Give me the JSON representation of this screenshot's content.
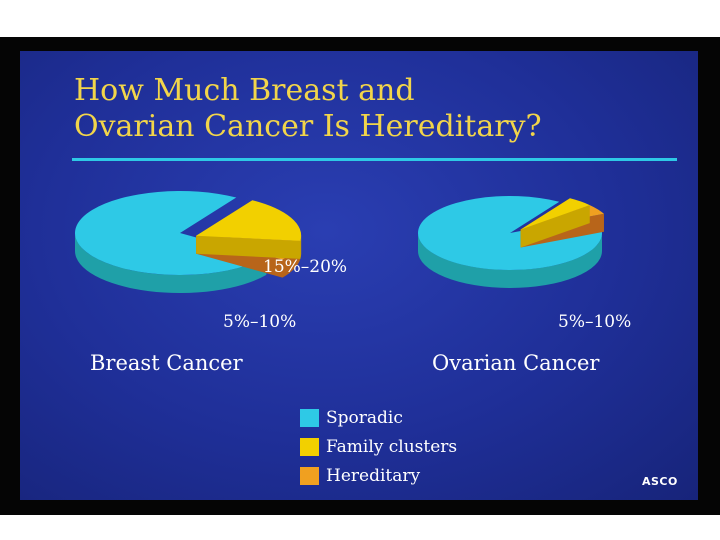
{
  "slide": {
    "title_line1": "How Much Breast and",
    "title_line2": "Ovarian Cancer Is Hereditary?",
    "source": "ASCO",
    "colors": {
      "background": "#1f2f98",
      "title": "#f2d54a",
      "rule": "#2ec9e6",
      "sporadic": "#2ec9e6",
      "family_clusters": "#f2d000",
      "hereditary": "#f0a020"
    }
  },
  "chart_data": [
    {
      "type": "pie",
      "title": "Breast Cancer",
      "categories": [
        "Sporadic",
        "Family clusters",
        "Hereditary"
      ],
      "values": [
        72.5,
        17.5,
        7.5
      ],
      "annotations": [
        "15%–20%",
        "5%–10%"
      ],
      "legend": "bottom-center",
      "style": "3d-exploded"
    },
    {
      "type": "pie",
      "title": "Ovarian Cancer",
      "categories": [
        "Sporadic",
        "Family clusters",
        "Hereditary"
      ],
      "values": [
        91,
        4.5,
        4.5
      ],
      "annotations": [
        "5%–10%"
      ],
      "legend": "bottom-center",
      "style": "3d-exploded"
    }
  ],
  "legend": {
    "items": [
      {
        "label": "Sporadic",
        "color": "#2ec9e6"
      },
      {
        "label": "Family clusters",
        "color": "#f2d000"
      },
      {
        "label": "Hereditary",
        "color": "#f0a020"
      }
    ]
  }
}
